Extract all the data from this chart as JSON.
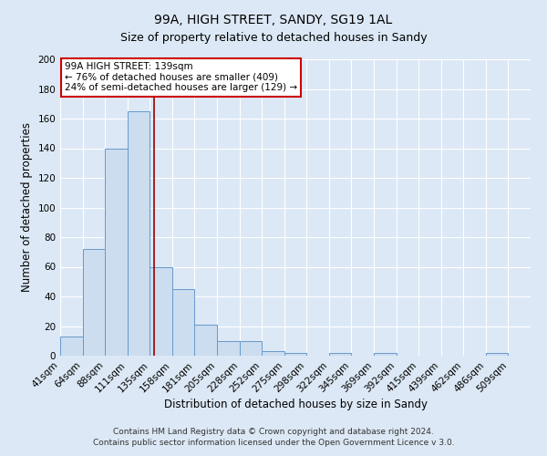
{
  "title": "99A, HIGH STREET, SANDY, SG19 1AL",
  "subtitle": "Size of property relative to detached houses in Sandy",
  "xlabel": "Distribution of detached houses by size in Sandy",
  "ylabel": "Number of detached properties",
  "bin_labels": [
    "41sqm",
    "64sqm",
    "88sqm",
    "111sqm",
    "135sqm",
    "158sqm",
    "181sqm",
    "205sqm",
    "228sqm",
    "252sqm",
    "275sqm",
    "298sqm",
    "322sqm",
    "345sqm",
    "369sqm",
    "392sqm",
    "415sqm",
    "439sqm",
    "462sqm",
    "486sqm",
    "509sqm"
  ],
  "bar_heights": [
    13,
    72,
    140,
    165,
    60,
    45,
    21,
    10,
    10,
    3,
    2,
    0,
    2,
    0,
    2,
    0,
    0,
    0,
    0,
    2,
    0
  ],
  "bar_color": "#ccddf0",
  "bar_edge_color": "#6699cc",
  "ylim": [
    0,
    200
  ],
  "yticks": [
    0,
    20,
    40,
    60,
    80,
    100,
    120,
    140,
    160,
    180,
    200
  ],
  "vline_color": "#990000",
  "annotation_title": "99A HIGH STREET: 139sqm",
  "annotation_line1": "← 76% of detached houses are smaller (409)",
  "annotation_line2": "24% of semi-detached houses are larger (129) →",
  "annotation_box_color": "#ffffff",
  "annotation_box_edge": "#cc0000",
  "footer1": "Contains HM Land Registry data © Crown copyright and database right 2024.",
  "footer2": "Contains public sector information licensed under the Open Government Licence v 3.0.",
  "background_color": "#dce8f5",
  "plot_bg_color": "#dce8f5",
  "grid_color": "#ffffff",
  "title_fontsize": 10,
  "subtitle_fontsize": 9,
  "axis_label_fontsize": 8.5,
  "tick_fontsize": 7.5,
  "footer_fontsize": 6.5
}
